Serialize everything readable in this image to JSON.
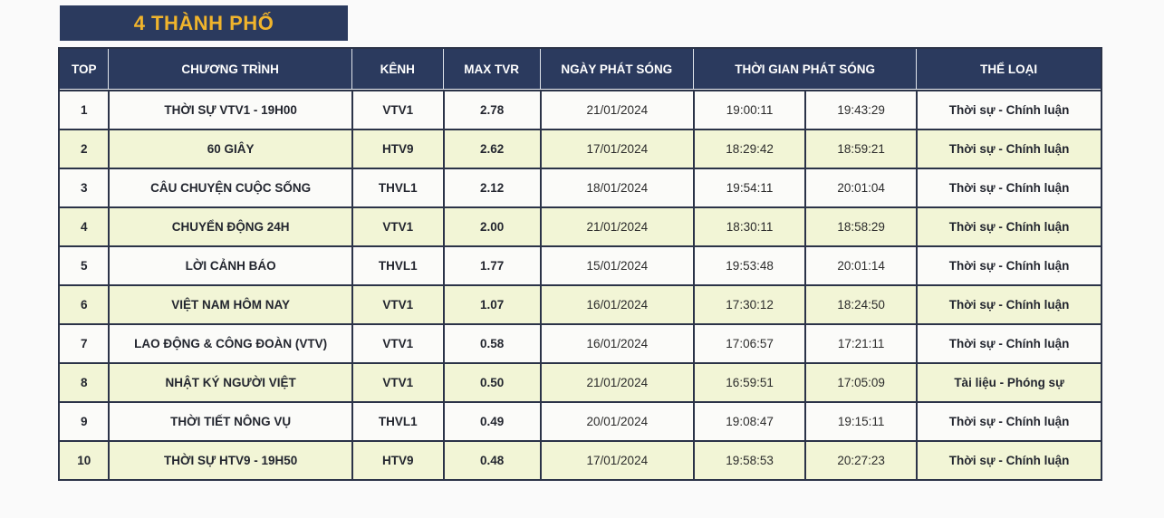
{
  "title": "4 THÀNH PHỐ",
  "colors": {
    "header_navy": "#2b3a5e",
    "title_gold": "#f0b42c",
    "row_cream": "#f2f5d6",
    "row_white": "#fbfbf9",
    "border_dark": "#2b3348",
    "block_gray": "#76839b",
    "block_navy": "#2e3d60",
    "block_dark": "#16233c"
  },
  "table": {
    "headers": {
      "top": "TOP",
      "program": "CHƯƠNG TRÌNH",
      "channel": "KÊNH",
      "max_tvr": "MAX TVR",
      "air_date": "NGÀY PHÁT SÓNG",
      "air_time": "THỜI GIAN PHÁT SÓNG",
      "genre": "THỂ LOẠI"
    },
    "rows": [
      {
        "top": "1",
        "program": "THỜI SỰ VTV1 - 19H00",
        "channel": "VTV1",
        "max_tvr": "2.78",
        "date": "21/01/2024",
        "time_start": "19:00:11",
        "time_end": "19:43:29",
        "genre": "Thời sự - Chính luận"
      },
      {
        "top": "2",
        "program": "60 GIÂY",
        "channel": "HTV9",
        "max_tvr": "2.62",
        "date": "17/01/2024",
        "time_start": "18:29:42",
        "time_end": "18:59:21",
        "genre": "Thời sự - Chính luận"
      },
      {
        "top": "3",
        "program": "CÂU CHUYỆN CUỘC SỐNG",
        "channel": "THVL1",
        "max_tvr": "2.12",
        "date": "18/01/2024",
        "time_start": "19:54:11",
        "time_end": "20:01:04",
        "genre": "Thời sự - Chính luận"
      },
      {
        "top": "4",
        "program": "CHUYỂN ĐỘNG 24H",
        "channel": "VTV1",
        "max_tvr": "2.00",
        "date": "21/01/2024",
        "time_start": "18:30:11",
        "time_end": "18:58:29",
        "genre": "Thời sự - Chính luận"
      },
      {
        "top": "5",
        "program": "LỜI CẢNH BÁO",
        "channel": "THVL1",
        "max_tvr": "1.77",
        "date": "15/01/2024",
        "time_start": "19:53:48",
        "time_end": "20:01:14",
        "genre": "Thời sự - Chính luận"
      },
      {
        "top": "6",
        "program": "VIỆT NAM HÔM NAY",
        "channel": "VTV1",
        "max_tvr": "1.07",
        "date": "16/01/2024",
        "time_start": "17:30:12",
        "time_end": "18:24:50",
        "genre": "Thời sự - Chính luận"
      },
      {
        "top": "7",
        "program": "LAO ĐỘNG & CÔNG ĐOÀN (VTV)",
        "channel": "VTV1",
        "max_tvr": "0.58",
        "date": "16/01/2024",
        "time_start": "17:06:57",
        "time_end": "17:21:11",
        "genre": "Thời sự - Chính luận"
      },
      {
        "top": "8",
        "program": "NHẬT KÝ NGƯỜI VIỆT",
        "channel": "VTV1",
        "max_tvr": "0.50",
        "date": "21/01/2024",
        "time_start": "16:59:51",
        "time_end": "17:05:09",
        "genre": "Tài liệu - Phóng sự"
      },
      {
        "top": "9",
        "program": "THỜI TIẾT NÔNG VỤ",
        "channel": "THVL1",
        "max_tvr": "0.49",
        "date": "20/01/2024",
        "time_start": "19:08:47",
        "time_end": "19:15:11",
        "genre": "Thời sự - Chính luận"
      },
      {
        "top": "10",
        "program": "THỜI SỰ HTV9 - 19H50",
        "channel": "HTV9",
        "max_tvr": "0.48",
        "date": "17/01/2024",
        "time_start": "19:58:53",
        "time_end": "20:27:23",
        "genre": "Thời sự - Chính luận"
      }
    ]
  }
}
